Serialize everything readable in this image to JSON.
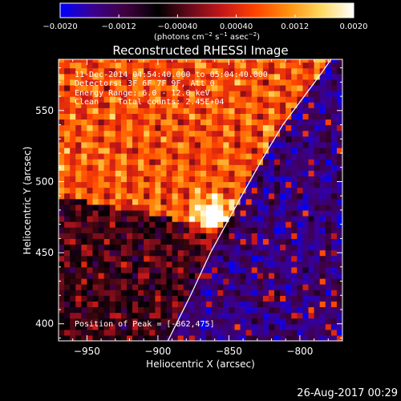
{
  "chart_data": {
    "type": "heatmap",
    "title": "Reconstructed RHESSI Image",
    "xlabel": "Heliocentric X (arcsec)",
    "ylabel": "Heliocentric Y (arcsec)",
    "xlim": [
      -970,
      -770
    ],
    "ylim": [
      388,
      586
    ],
    "x_ticks": [
      -950,
      -900,
      -850,
      -800
    ],
    "y_ticks": [
      400,
      450,
      500,
      550
    ],
    "x_tick_labels": [
      "−950",
      "−900",
      "−850",
      "−800"
    ],
    "y_tick_labels": [
      "400",
      "450",
      "500",
      "550"
    ],
    "colorbar": {
      "range": [
        -0.002,
        0.002
      ],
      "ticks": [
        -0.002,
        -0.0012,
        -0.0004,
        0.0004,
        0.0012,
        0.002
      ],
      "tick_labels": [
        "−0.0020",
        "−0.0012",
        "−0.00040",
        "0.00040",
        "0.0012",
        "0.0020"
      ],
      "units_main": "(photons cm",
      "units_exp1": "−2",
      "units_mid": " s",
      "units_exp2": "−1",
      "units_mid2": " asec",
      "units_exp3": "−2",
      "units_end": ")",
      "colormap": "rhessi-flame",
      "color_stops": [
        "#0000ff",
        "#3a0090",
        "#400040",
        "#000000",
        "#6a0a1a",
        "#c81818",
        "#ff4400",
        "#ff9010",
        "#ffd860",
        "#ffffff"
      ]
    },
    "annotations": {
      "time_range": "11-Dec-2014 04:54:40.000 to 05:04:40.000",
      "detectors": "Detectors: 3F 6F 7F 9F, Att 0",
      "energy": "Energy Range: 6.0 - 12.0 keV",
      "method": "Clean",
      "counts": "Total counts: 2.45E+04",
      "peak": "Position of Peak = [-862,475]"
    },
    "peak": {
      "x": -862,
      "y": 475
    },
    "limb_curve_x": [
      -893,
      -887,
      -877,
      -863,
      -852,
      -841,
      -827,
      -812,
      -797,
      -785,
      -778
    ],
    "limb_curve_y": [
      388,
      400,
      420,
      450,
      470,
      490,
      515,
      540,
      560,
      576,
      586
    ],
    "footer_date": "26-Aug-2017 00:29",
    "colors": {
      "background": "#000000",
      "foreground": "#ffffff",
      "limb": "#ffffff"
    }
  }
}
